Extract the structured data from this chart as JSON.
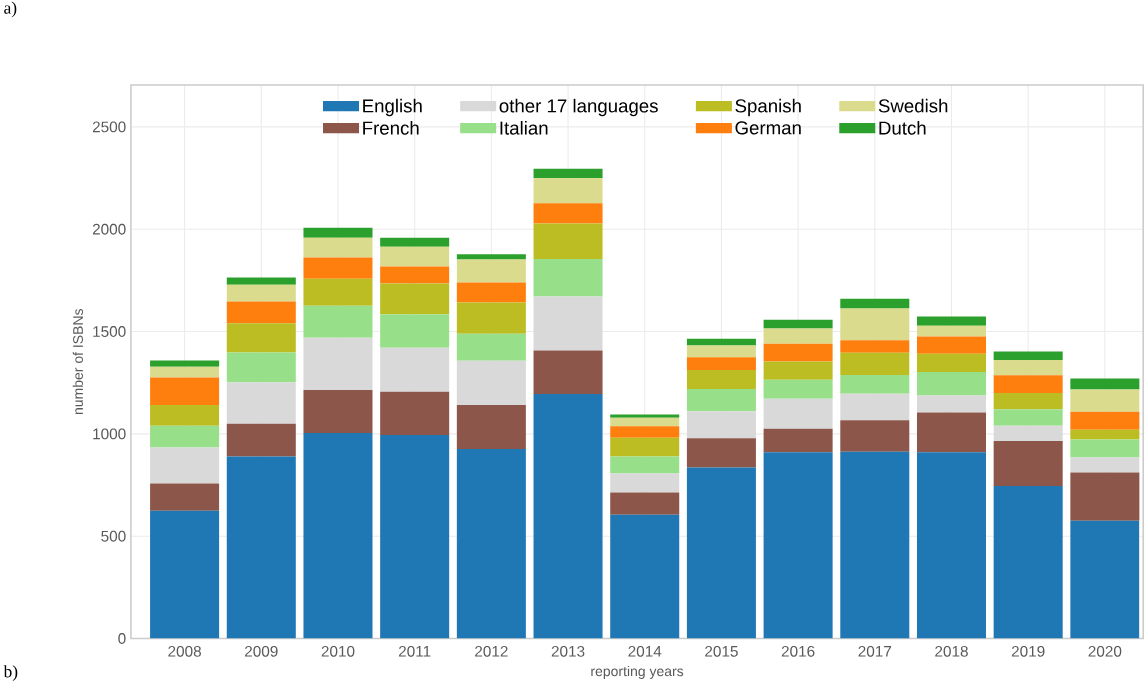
{
  "chart_data": {
    "type": "bar",
    "stacked": true,
    "xlabel": "reporting years",
    "ylabel": "number of ISBNs",
    "categories": [
      "2008",
      "2009",
      "2010",
      "2011",
      "2012",
      "2013",
      "2014",
      "2015",
      "2016",
      "2017",
      "2018",
      "2019",
      "2020"
    ],
    "series": [
      {
        "name": "English",
        "color": "#1f77b4",
        "values": [
          625,
          890,
          1004,
          995,
          926,
          1195,
          605,
          836,
          910,
          913,
          910,
          745,
          576
        ]
      },
      {
        "name": "French",
        "color": "#8c564b",
        "values": [
          133,
          160,
          210,
          211,
          215,
          213,
          108,
          143,
          115,
          153,
          195,
          220,
          235
        ]
      },
      {
        "name": "other 17 languages",
        "color": "#d9d9d9",
        "values": [
          175,
          202,
          256,
          215,
          216,
          263,
          93,
          131,
          147,
          130,
          82,
          75,
          73
        ]
      },
      {
        "name": "Italian",
        "color": "#98df8a",
        "values": [
          107,
          146,
          156,
          164,
          132,
          183,
          83,
          109,
          93,
          92,
          115,
          80,
          89
        ]
      },
      {
        "name": "Spanish",
        "color": "#bcbd22",
        "values": [
          101,
          142,
          132,
          150,
          153,
          174,
          92,
          93,
          89,
          108,
          90,
          80,
          47
        ]
      },
      {
        "name": "German",
        "color": "#ff7f0e",
        "values": [
          135,
          107,
          104,
          83,
          98,
          99,
          56,
          62,
          86,
          62,
          84,
          86,
          88
        ]
      },
      {
        "name": "Swedish",
        "color": "#dbdb8d",
        "values": [
          52,
          82,
          96,
          96,
          112,
          122,
          42,
          58,
          75,
          155,
          52,
          75,
          109
        ]
      },
      {
        "name": "Dutch",
        "color": "#2ca02c",
        "values": [
          31,
          35,
          49,
          44,
          26,
          46,
          16,
          33,
          43,
          47,
          46,
          42,
          54
        ]
      }
    ],
    "ylim": [
      0,
      2705
    ],
    "yticks": [
      0,
      500,
      1000,
      1500,
      2000,
      2500
    ],
    "grid": true,
    "legend": "top",
    "annotations": [
      "a)",
      "b)"
    ]
  }
}
